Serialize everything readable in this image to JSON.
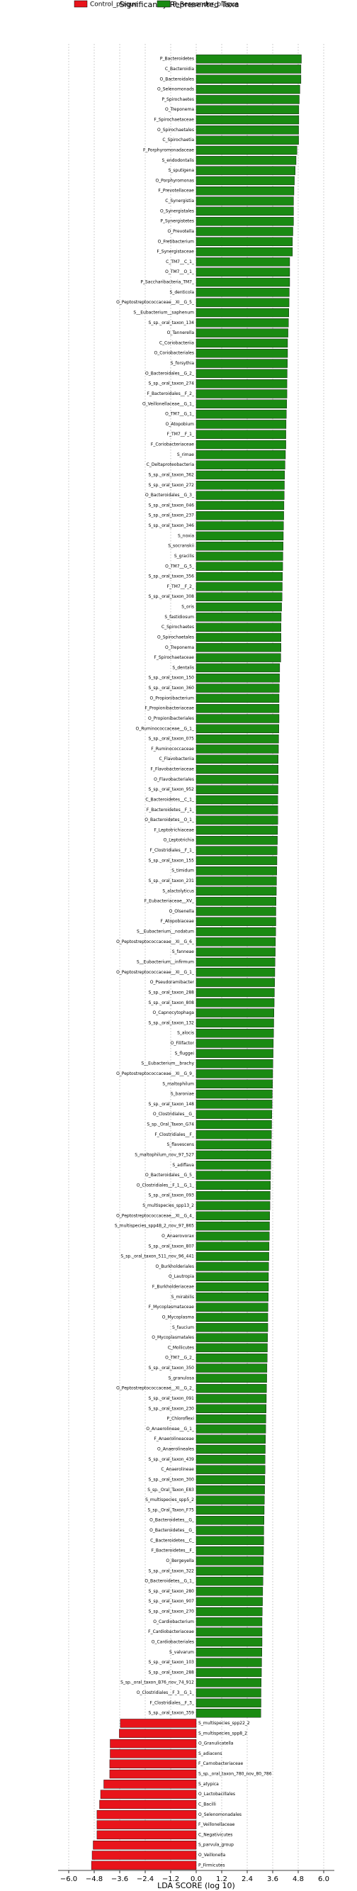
{
  "chart_data": {
    "type": "barh",
    "title": "Significantly Represented Taxa",
    "xlabel": "LDA SCORE (log 10)",
    "xlim": [
      -6.5,
      6.5
    ],
    "xticks": [
      {
        "value": -6.0,
        "label": "−6.0"
      },
      {
        "value": -4.8,
        "label": "−4.8"
      },
      {
        "value": -3.6,
        "label": "−3.6"
      },
      {
        "value": -2.4,
        "label": "−2.4"
      },
      {
        "value": -1.2,
        "label": "−1.2"
      },
      {
        "value": 0.0,
        "label": "0.0"
      },
      {
        "value": 1.2,
        "label": "1.2"
      },
      {
        "value": 2.4,
        "label": "2.4"
      },
      {
        "value": 3.6,
        "label": "3.6"
      },
      {
        "value": 4.8,
        "label": "4.8"
      },
      {
        "value": 6.0,
        "label": "6.0"
      }
    ],
    "grid": true,
    "series": [
      {
        "name": "Control_plaque",
        "color": "#e8141b",
        "categories": [
          "S_multispecies_spp22_2",
          "S_multispecies_spp8_2",
          "O_Granulicatella",
          "S_adiacens",
          "F_Carnobacteriaceae",
          "S_sp._oral_taxon_780_nov_80_786",
          "S_atypica",
          "O_Lactobacillales",
          "C_Bacilli",
          "O_Selenomonadales",
          "F_Veillonellaceae",
          "C_Negativicutes",
          "S_parvula_group",
          "O_Veillonella",
          "P_Firmicutes"
        ],
        "values": [
          -3.57,
          -3.62,
          -4.05,
          -4.05,
          -4.07,
          -4.07,
          -4.35,
          -4.5,
          -4.55,
          -4.67,
          -4.67,
          -4.67,
          -4.85,
          -4.9,
          -4.93
        ]
      },
      {
        "name": "P_Responder_plaque",
        "color": "#1a8a12",
        "categories": [
          "P_Bacteroidetes",
          "C_Bacteroidia",
          "O_Bacteroidales",
          "O_Selenomonads",
          "P_Spirochaetes",
          "O_Treponema",
          "F_Spirochaetaceae",
          "O_Spirochaetales",
          "C_Spirochaetia",
          "F_Porphyromonadaceae",
          "S_endodontalis",
          "S_sputigena",
          "O_Porphyromonas",
          "F_Prevotellaceae",
          "C_Synergistia",
          "O_Synergistales",
          "P_Synergistetes",
          "O_Prevotella",
          "O_Fretibacterium",
          "F_Synergistaceae",
          "C_TM7__C_1_",
          "O_TM7__O_1_",
          "P_Saccharibacteria_TM7_",
          "S_denticola",
          "O_Peptostreptococcaceae__XI__G_5_",
          "S__Eubacterium__saphenum",
          "S_sp._oral_taxon_134",
          "O_Tannerella",
          "C_Coriobacteriia",
          "O_Coriobacteriales",
          "S_forsythia",
          "O_Bacteroidales__G_2_",
          "S_sp._oral_taxon_274",
          "F_Bacteroidales__F_2_",
          "O_Veillonellaceae__G_1_",
          "O_TM7__G_1_",
          "O_Atopobium",
          "F_TM7__F_1_",
          "F_Coriobacteriaceae",
          "S_rimae",
          "C_Deltaproteobacteria",
          "S_sp._oral_taxon_362",
          "S_sp._oral_taxon_272",
          "O_Bacteroidales__G_3_",
          "S_sp._oral_taxon_046",
          "S_sp._oral_taxon_237",
          "S_sp._oral_taxon_346",
          "S_noxia",
          "S_socranskii",
          "S_gracilis",
          "O_TM7__G_5_",
          "S_sp._oral_taxon_356",
          "F_TM7__F_2_",
          "S_sp._oral_taxon_308",
          "S_oris",
          "S_fastidiosum",
          "C_Spirochaetes",
          "O_Spirochaetales",
          "O_Treponema",
          "F_Spirochaetaceae",
          "S_dentalis",
          "S_sp._oral_taxon_150",
          "S_sp._oral_taxon_360",
          "O_Propionibacterium",
          "F_Propionibacteriaceae",
          "O_Propionibacteriales",
          "O_Ruminococcaceae__G_1_",
          "S_sp._oral_taxon_075",
          "F_Ruminococcaceae",
          "C_Flavobacteriia",
          "F_Flavobacteriaceae",
          "O_Flavobacteriales",
          "S_sp._oral_taxon_952",
          "C_Bacteroidetes__C_1_",
          "F_Bacteroidetes__F_1_",
          "O_Bacteroidetes__O_1_",
          "F_Leptotrichiaceae",
          "O_Leptotrichia",
          "F_Clostridiales__F_1_",
          "S_sp._oral_taxon_155",
          "S_timidum",
          "S_sp._oral_taxon_231",
          "S_alactolyticus",
          "F_Eubacteriaceae__XV_",
          "O_Olsenella",
          "F_Atopobiaceae",
          "S__Eubacterium__nodatum",
          "O_Peptostreptococcaceae__XI__G_6_",
          "S_fanneae",
          "S__Eubacterium__infirmum",
          "O_Peptostreptococcaceae__XI__G_1_",
          "O_Pseudoramibacter",
          "S_sp._oral_taxon_288",
          "S_sp._oral_taxon_808",
          "O_Capnocytophaga",
          "S_sp._oral_taxon_132",
          "S_alocis",
          "O_Filifactor",
          "S_fluggei",
          "S__Eubacterium__brachy",
          "O_Peptostreptococcaceae__XI__G_9_",
          "S_maltophilum",
          "S_baroniae",
          "S_sp._oral_taxon_148",
          "O_Clostridiales__G_",
          "S_sp._Oral_Taxon_G74",
          "F_Clostridiales__F_",
          "S_flavescens",
          "S_maltophilum_nov_97_527",
          "S_adiflava",
          "O_Bacteroidales__G_5_",
          "O_Clostridiales__F_1__G_1_",
          "S_sp._oral_taxon_093",
          "S_multispecies_spp13_2",
          "O_Peptostreptococcaceae__XI__G_4_",
          "S_multispecies_spp4B_2_nov_97_865",
          "O_Anaerovorax",
          "S_sp._oral_taxon_807",
          "S_sp._oral_taxon_511_nov_96_441",
          "O_Burkholderiales",
          "O_Lautropia",
          "F_Burkholderiaceae",
          "S_mirabilis",
          "F_Mycoplasmataceae",
          "O_Mycoplasma",
          "S_faucium",
          "O_Mycoplasmatales",
          "C_Mollicutes",
          "O_TM7__G_2_",
          "S_sp._oral_taxon_350",
          "S_granulosa",
          "O_Peptostreptococcaceae__XI__G_2_",
          "S_sp._oral_taxon_091",
          "S_sp._oral_taxon_230",
          "P_Chloroflexi",
          "O_Anaerolineae__G_1_",
          "F_Anaerolineaceae",
          "O_Anaerolineales",
          "S_sp._oral_taxon_439",
          "C_Anaerolineae",
          "S_sp._oral_taxon_300",
          "S_sp._Oral_Taxon_E83",
          "S_multispecies_spp5_2",
          "S_sp._Oral_Taxon_F75",
          "O_Bacteroidetes__G_",
          "O_Bacteroidetes__G_",
          "C_Bacteroidetes__C_",
          "F_Bacteroidetes__F_",
          "O_Bergeyella",
          "S_sp._oral_taxon_322",
          "O_Bacteroidetes__G_1_",
          "S_sp._oral_taxon_280",
          "S_sp._oral_taxon_907",
          "S_sp._oral_taxon_270",
          "O_Cardiobacterium",
          "F_Cardiobacteriaceae",
          "O_Cardiobacteriales",
          "S_valvarum",
          "S_sp._oral_taxon_103",
          "S_sp._oral_taxon_288",
          "S_sp._oral_taxon_B76_nov_74_912",
          "O_Clostridiales__F_3__G_1_",
          "F_Clostridiales__F_3_",
          "S_sp._oral_taxon_359"
        ],
        "values": [
          4.95,
          4.93,
          4.93,
          4.88,
          4.85,
          4.83,
          4.83,
          4.82,
          4.82,
          4.74,
          4.7,
          4.66,
          4.62,
          4.6,
          4.58,
          4.58,
          4.58,
          4.55,
          4.53,
          4.53,
          4.4,
          4.4,
          4.4,
          4.38,
          4.37,
          4.36,
          4.34,
          4.32,
          4.3,
          4.3,
          4.29,
          4.28,
          4.27,
          4.27,
          4.26,
          4.24,
          4.23,
          4.22,
          4.22,
          4.2,
          4.18,
          4.16,
          4.15,
          4.14,
          4.13,
          4.12,
          4.11,
          4.1,
          4.09,
          4.08,
          4.07,
          4.06,
          4.05,
          4.04,
          4.02,
          4.0,
          3.99,
          3.99,
          3.99,
          3.98,
          3.93,
          3.92,
          3.91,
          3.9,
          3.9,
          3.9,
          3.89,
          3.88,
          3.87,
          3.86,
          3.86,
          3.86,
          3.85,
          3.84,
          3.84,
          3.84,
          3.83,
          3.82,
          3.81,
          3.8,
          3.79,
          3.78,
          3.77,
          3.76,
          3.75,
          3.75,
          3.74,
          3.73,
          3.72,
          3.71,
          3.7,
          3.69,
          3.68,
          3.67,
          3.66,
          3.65,
          3.64,
          3.63,
          3.62,
          3.61,
          3.6,
          3.59,
          3.58,
          3.57,
          3.56,
          3.55,
          3.54,
          3.53,
          3.52,
          3.51,
          3.5,
          3.49,
          3.48,
          3.47,
          3.46,
          3.45,
          3.44,
          3.43,
          3.42,
          3.41,
          3.4,
          3.4,
          3.39,
          3.38,
          3.37,
          3.37,
          3.36,
          3.35,
          3.34,
          3.33,
          3.32,
          3.31,
          3.3,
          3.29,
          3.28,
          3.27,
          3.26,
          3.25,
          3.24,
          3.24,
          3.23,
          3.22,
          3.21,
          3.2,
          3.19,
          3.18,
          3.18,
          3.17,
          3.16,
          3.15,
          3.14,
          3.13,
          3.12,
          3.11,
          3.1,
          3.1,
          3.1,
          3.09,
          3.08,
          3.07,
          3.06,
          3.05,
          3.05,
          3.04
        ]
      }
    ]
  }
}
